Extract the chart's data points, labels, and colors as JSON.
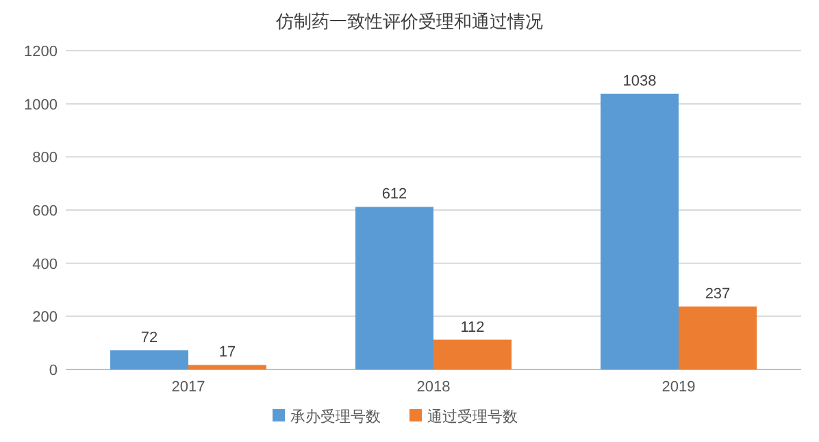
{
  "chart_data": {
    "type": "bar",
    "title": "仿制药一致性评价受理和通过情况",
    "categories": [
      "2017",
      "2018",
      "2019"
    ],
    "series": [
      {
        "name": "承办受理号数",
        "color": "#5b9bd5",
        "values": [
          72,
          612,
          1038
        ]
      },
      {
        "name": "通过受理号数",
        "color": "#ed7d31",
        "values": [
          17,
          112,
          237
        ]
      }
    ],
    "ylim": [
      0,
      1200
    ],
    "yticks": [
      0,
      200,
      400,
      600,
      800,
      1000,
      1200
    ],
    "grid": "y",
    "legend": "bottom",
    "data_labels": true
  }
}
